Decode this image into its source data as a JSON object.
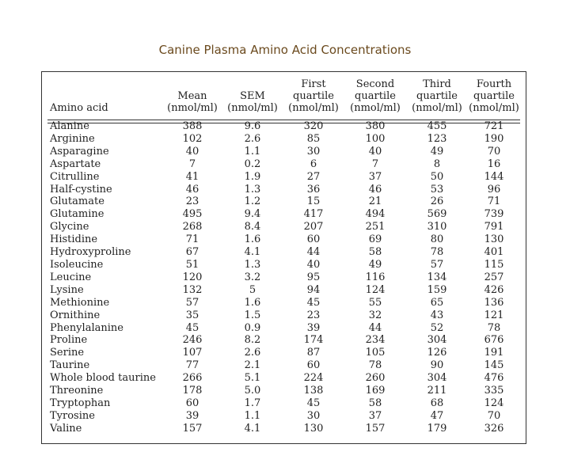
{
  "title": "Canine Plasma Amino Acid Concentrations",
  "headers": [
    [
      "Amino acid"
    ],
    [
      "Mean",
      "(nmol/ml)"
    ],
    [
      "SEM",
      "(nmol/ml)"
    ],
    [
      "First",
      "quartile",
      "(nmol/ml)"
    ],
    [
      "Second",
      "quartile",
      "(nmol/ml)"
    ],
    [
      "Third",
      "quartile",
      "(nmol/ml)"
    ],
    [
      "Fourth",
      "quartile",
      "(nmol/ml)"
    ]
  ],
  "rows": [
    [
      "Alanine",
      "388",
      "9.6",
      "320",
      "380",
      "455",
      "721"
    ],
    [
      "Arginine",
      "102",
      "2.6",
      "85",
      "100",
      "123",
      "190"
    ],
    [
      "Asparagine",
      "40",
      "1.1",
      "30",
      "40",
      "49",
      "70"
    ],
    [
      "Aspartate",
      "7",
      "0.2",
      "6",
      "7",
      "8",
      "16"
    ],
    [
      "Citrulline",
      "41",
      "1.9",
      "27",
      "37",
      "50",
      "144"
    ],
    [
      "Half-cystine",
      "46",
      "1.3",
      "36",
      "46",
      "53",
      "96"
    ],
    [
      "Glutamate",
      "23",
      "1.2",
      "15",
      "21",
      "26",
      "71"
    ],
    [
      "Glutamine",
      "495",
      "9.4",
      "417",
      "494",
      "569",
      "739"
    ],
    [
      "Glycine",
      "268",
      "8.4",
      "207",
      "251",
      "310",
      "791"
    ],
    [
      "Histidine",
      "71",
      "1.6",
      "60",
      "69",
      "80",
      "130"
    ],
    [
      "Hydroxyproline",
      "67",
      "4.1",
      "44",
      "58",
      "78",
      "401"
    ],
    [
      "Isoleucine",
      "51",
      "1.3",
      "40",
      "49",
      "57",
      "115"
    ],
    [
      "Leucine",
      "120",
      "3.2",
      "95",
      "116",
      "134",
      "257"
    ],
    [
      "Lysine",
      "132",
      "5",
      "94",
      "124",
      "159",
      "426"
    ],
    [
      "Methionine",
      "57",
      "1.6",
      "45",
      "55",
      "65",
      "136"
    ],
    [
      "Ornithine",
      "35",
      "1.5",
      "23",
      "32",
      "43",
      "121"
    ],
    [
      "Phenylalanine",
      "45",
      "0.9",
      "39",
      "44",
      "52",
      "78"
    ],
    [
      "Proline",
      "246",
      "8.2",
      "174",
      "234",
      "304",
      "676"
    ],
    [
      "Serine",
      "107",
      "2.6",
      "87",
      "105",
      "126",
      "191"
    ],
    [
      "Taurine",
      "77",
      "2.1",
      "60",
      "78",
      "90",
      "145"
    ],
    [
      "Whole blood taurine",
      "266",
      "5.1",
      "224",
      "260",
      "304",
      "476"
    ],
    [
      "Threonine",
      "178",
      "5.0",
      "138",
      "169",
      "211",
      "335"
    ],
    [
      "Tryptophan",
      "60",
      "1.7",
      "45",
      "58",
      "68",
      "124"
    ],
    [
      "Tyrosine",
      "39",
      "1.1",
      "30",
      "37",
      "47",
      "70"
    ],
    [
      "Valine",
      "157",
      "4.1",
      "130",
      "157",
      "179",
      "326"
    ]
  ],
  "colors": {
    "title": "#6b4a1e",
    "text": "#222222",
    "rule": "#333333"
  }
}
